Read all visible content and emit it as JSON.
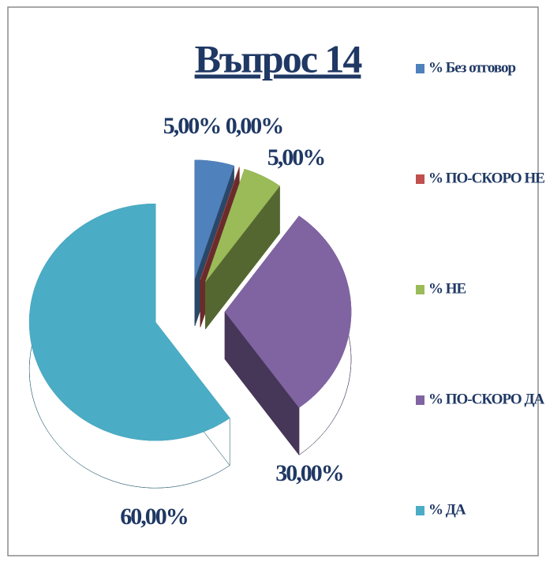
{
  "chart_data": {
    "type": "pie",
    "title": "Въпрос 14",
    "categories": [
      "% Без отговор",
      "% ПО-СКОРО НЕ",
      "% НЕ",
      "% ПО-СКОРО ДА",
      "% ДА"
    ],
    "values": [
      5,
      0,
      5,
      30,
      60
    ],
    "value_labels": [
      "5,00%",
      "0,00%",
      "5,00%",
      "30,00%",
      "60,00%"
    ],
    "colors": [
      "#4f81bd",
      "#c0504d",
      "#9bbb59",
      "#8064a2",
      "#4bacc6"
    ],
    "legend": "right"
  }
}
